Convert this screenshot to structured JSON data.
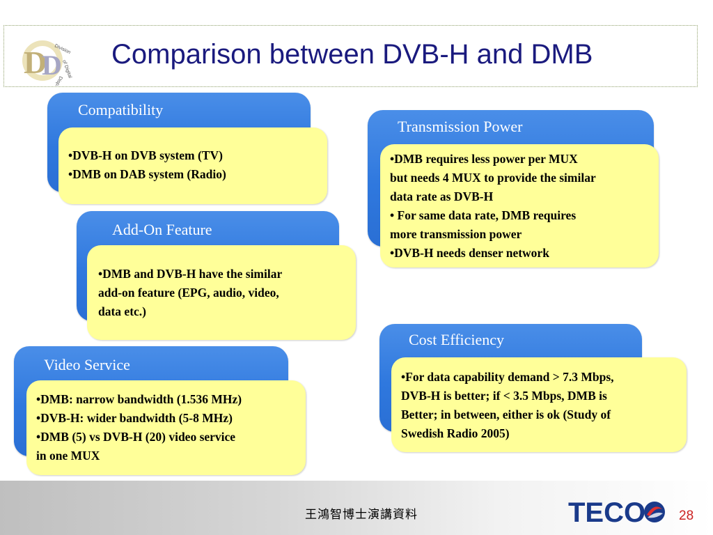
{
  "header": {
    "title": "Comparison between DVB-H and DMB",
    "logo_text": "Division of Digital Display"
  },
  "sections": {
    "compatibility": {
      "title": "Compatibility",
      "lines": [
        "•DVB-H on DVB system (TV)",
        "•DMB on DAB system (Radio)"
      ]
    },
    "transmission_power": {
      "title": "Transmission Power",
      "lines": [
        "•DMB requires less power per MUX",
        "but needs 4 MUX to provide the similar",
        "data rate as DVB-H",
        "• For same data rate, DMB requires",
        "more transmission power",
        "•DVB-H needs denser network"
      ]
    },
    "add_on_feature": {
      "title": "Add-On Feature",
      "lines": [
        "•DMB and DVB-H have the similar",
        "add-on feature (EPG, audio, video,",
        "data etc.)"
      ]
    },
    "cost_efficiency": {
      "title": "Cost Efficiency",
      "lines": [
        "•For data capability demand > 7.3 Mbps,",
        "DVB-H is better; if < 3.5 Mbps, DMB is",
        "Better; in between, either is ok (Study of",
        "Swedish Radio 2005)"
      ]
    },
    "video_service": {
      "title": "Video Service",
      "lines": [
        "•DMB: narrow bandwidth (1.536 MHz)",
        "•DVB-H: wider bandwidth (5-8 MHz)",
        "•DMB (5) vs DVB-H (20) video service",
        "in one MUX"
      ]
    }
  },
  "footer": {
    "text": "王鴻智博士演講資料",
    "brand": "TECO",
    "page_number": "28"
  },
  "colors": {
    "title": "#1a1a7e",
    "panel": "#2f78de",
    "note": "#ffff99",
    "brand": "#1a3a8a",
    "page_number": "#cc2222"
  }
}
